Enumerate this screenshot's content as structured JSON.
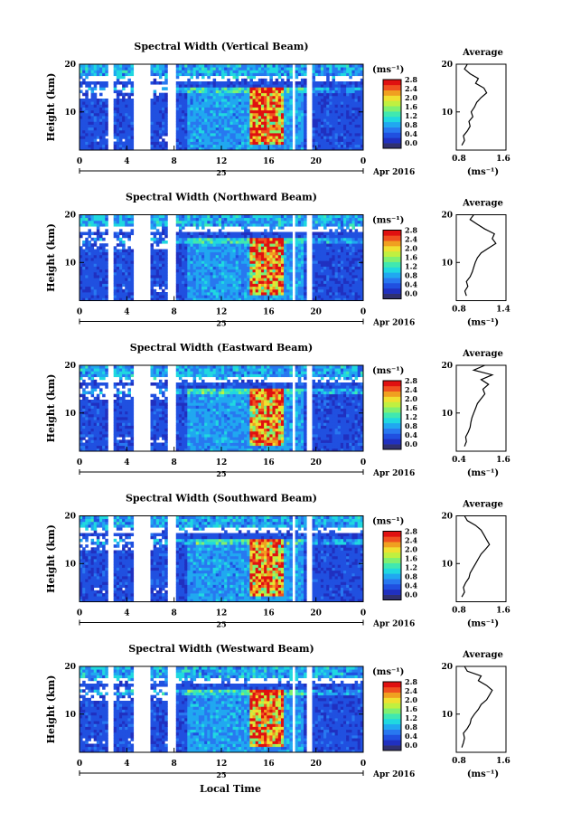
{
  "figure": {
    "xlabel_bottom": "Local Time",
    "date_label": "Apr 2016",
    "day_label": "25",
    "y_axis_label": "Height (km)",
    "unit_label": "(ms⁻¹)",
    "avg_unit_label": "(ms⁻¹)",
    "avg_title": "Average"
  },
  "colors": {
    "colormap": [
      "#303070",
      "#2030c0",
      "#2050e0",
      "#2878f0",
      "#20a8f0",
      "#20d8e0",
      "#40e8b0",
      "#80f070",
      "#c0f040",
      "#f0e030",
      "#f0a020",
      "#f05020",
      "#e01010"
    ]
  },
  "chart_data": [
    {
      "type": "heatmap",
      "title": "Spectral Width (Vertical Beam)",
      "ylabel": "Height (km)",
      "xlabel": "Local Time",
      "xlim": [
        0,
        24
      ],
      "xticks": [
        "0",
        "4",
        "8",
        "12",
        "16",
        "20",
        "0"
      ],
      "ylim": [
        2,
        20
      ],
      "yticks": [
        "10",
        "20"
      ],
      "colorbar": {
        "label": "(ms⁻¹)",
        "ticks": [
          "0.0",
          "0.4",
          "0.8",
          "1.2",
          "1.6",
          "2.0",
          "2.4",
          "2.8"
        ]
      },
      "data_gaps_hours": [
        [
          2.4,
          2.9
        ],
        [
          4.6,
          6.0
        ],
        [
          7.5,
          8.2
        ],
        [
          18.0,
          18.3
        ],
        [
          19.3,
          19.6
        ]
      ],
      "enhanced_region": {
        "x": [
          14.5,
          17.3
        ],
        "y": [
          3,
          15
        ]
      },
      "average_profile": {
        "title": "Average",
        "xlabel": "(ms⁻¹)",
        "xticks": [
          "0.8",
          "1.6"
        ],
        "xlim": [
          0.8,
          1.6
        ],
        "yticks": [
          "10",
          "20"
        ],
        "height": [
          3,
          4,
          5,
          6,
          7,
          8,
          9,
          10,
          11,
          12,
          13,
          14,
          15,
          16,
          17,
          18,
          19,
          20
        ],
        "value": [
          0.85,
          0.9,
          0.88,
          0.95,
          1.0,
          0.98,
          1.05,
          1.02,
          1.08,
          1.12,
          1.2,
          1.3,
          1.25,
          1.1,
          1.15,
          1.0,
          0.9,
          0.95
        ]
      }
    },
    {
      "type": "heatmap",
      "title": "Spectral Width (Northward Beam)",
      "ylabel": "Height (km)",
      "xlabel": "Local Time",
      "xlim": [
        0,
        24
      ],
      "xticks": [
        "0",
        "4",
        "8",
        "12",
        "16",
        "20",
        "0"
      ],
      "ylim": [
        2,
        20
      ],
      "yticks": [
        "10",
        "20"
      ],
      "colorbar": {
        "label": "(ms⁻¹)",
        "ticks": [
          "0.0",
          "0.4",
          "0.8",
          "1.2",
          "1.6",
          "2.0",
          "2.4",
          "2.8"
        ]
      },
      "data_gaps_hours": [
        [
          2.4,
          2.9
        ],
        [
          4.6,
          6.0
        ],
        [
          7.5,
          8.2
        ],
        [
          18.0,
          18.3
        ],
        [
          19.3,
          19.6
        ]
      ],
      "enhanced_region": {
        "x": [
          14.5,
          17.3
        ],
        "y": [
          3,
          15
        ]
      },
      "average_profile": {
        "title": "Average",
        "xlabel": "(ms⁻¹)",
        "xticks": [
          "0.8",
          "1.4"
        ],
        "xlim": [
          0.8,
          1.4
        ],
        "yticks": [
          "10",
          "20"
        ],
        "height": [
          3,
          4,
          5,
          6,
          7,
          8,
          9,
          10,
          11,
          12,
          13,
          14,
          15,
          16,
          17,
          18,
          19,
          20
        ],
        "value": [
          0.9,
          0.88,
          0.92,
          0.9,
          0.95,
          0.98,
          1.0,
          1.02,
          1.05,
          1.1,
          1.2,
          1.3,
          1.25,
          1.28,
          1.15,
          1.05,
          0.95,
          1.0
        ]
      }
    },
    {
      "type": "heatmap",
      "title": "Spectral Width (Eastward Beam)",
      "ylabel": "Height (km)",
      "xlabel": "Local Time",
      "xlim": [
        0,
        24
      ],
      "xticks": [
        "0",
        "4",
        "8",
        "12",
        "16",
        "20",
        "0"
      ],
      "ylim": [
        2,
        20
      ],
      "yticks": [
        "10",
        "20"
      ],
      "colorbar": {
        "label": "(ms⁻¹)",
        "ticks": [
          "0.0",
          "0.4",
          "0.8",
          "1.2",
          "1.6",
          "2.0",
          "2.4",
          "2.8"
        ]
      },
      "data_gaps_hours": [
        [
          2.4,
          2.9
        ],
        [
          4.6,
          6.0
        ],
        [
          7.5,
          8.2
        ],
        [
          18.0,
          18.3
        ],
        [
          19.3,
          19.6
        ]
      ],
      "enhanced_region": {
        "x": [
          14.5,
          17.3
        ],
        "y": [
          3,
          15
        ]
      },
      "average_profile": {
        "title": "Average",
        "xlabel": "(ms⁻¹)",
        "xticks": [
          "0.4",
          "1.6"
        ],
        "xlim": [
          0.4,
          1.6
        ],
        "yticks": [
          "10",
          "20"
        ],
        "height": [
          3,
          4,
          5,
          6,
          7,
          8,
          9,
          10,
          11,
          12,
          13,
          14,
          15,
          16,
          17,
          18,
          19,
          20
        ],
        "value": [
          0.55,
          0.6,
          0.58,
          0.65,
          0.7,
          0.72,
          0.75,
          0.8,
          0.85,
          0.9,
          1.0,
          1.1,
          1.05,
          1.2,
          1.0,
          1.3,
          0.8,
          1.1
        ]
      }
    },
    {
      "type": "heatmap",
      "title": "Spectral Width (Southward Beam)",
      "ylabel": "Height (km)",
      "xlabel": "Local Time",
      "xlim": [
        0,
        24
      ],
      "xticks": [
        "0",
        "4",
        "8",
        "12",
        "16",
        "20",
        "0"
      ],
      "ylim": [
        2,
        20
      ],
      "yticks": [
        "10",
        "20"
      ],
      "colorbar": {
        "label": "(ms⁻¹)",
        "ticks": [
          "0.0",
          "0.4",
          "0.8",
          "1.2",
          "1.6",
          "2.0",
          "2.4",
          "2.8"
        ]
      },
      "data_gaps_hours": [
        [
          2.4,
          2.9
        ],
        [
          4.6,
          6.0
        ],
        [
          7.5,
          8.2
        ],
        [
          18.0,
          18.3
        ],
        [
          19.3,
          19.6
        ]
      ],
      "enhanced_region": {
        "x": [
          14.5,
          17.3
        ],
        "y": [
          3,
          15
        ]
      },
      "average_profile": {
        "title": "Average",
        "xlabel": "(ms⁻¹)",
        "xticks": [
          "0.8",
          "1.6"
        ],
        "xlim": [
          0.8,
          1.6
        ],
        "yticks": [
          "10",
          "20"
        ],
        "height": [
          3,
          4,
          5,
          6,
          7,
          8,
          9,
          10,
          11,
          12,
          13,
          14,
          15,
          16,
          17,
          18,
          19,
          20
        ],
        "value": [
          0.85,
          0.9,
          0.88,
          0.92,
          0.98,
          1.0,
          1.05,
          1.1,
          1.15,
          1.2,
          1.28,
          1.35,
          1.3,
          1.25,
          1.2,
          1.1,
          0.95,
          0.9
        ]
      }
    },
    {
      "type": "heatmap",
      "title": "Spectral Width (Westward Beam)",
      "ylabel": "Height (km)",
      "xlabel": "Local Time",
      "xlim": [
        0,
        24
      ],
      "xticks": [
        "0",
        "4",
        "8",
        "12",
        "16",
        "20",
        "0"
      ],
      "ylim": [
        2,
        20
      ],
      "yticks": [
        "10",
        "20"
      ],
      "colorbar": {
        "label": "(ms⁻¹)",
        "ticks": [
          "0.0",
          "0.4",
          "0.8",
          "1.2",
          "1.6",
          "2.0",
          "2.4",
          "2.8"
        ]
      },
      "data_gaps_hours": [
        [
          2.4,
          2.9
        ],
        [
          4.6,
          6.0
        ],
        [
          7.5,
          8.2
        ],
        [
          18.0,
          18.3
        ],
        [
          19.3,
          19.6
        ]
      ],
      "enhanced_region": {
        "x": [
          14.5,
          17.3
        ],
        "y": [
          3,
          15
        ]
      },
      "average_profile": {
        "title": "Average",
        "xlabel": "(ms⁻¹)",
        "xticks": [
          "0.8",
          "1.6"
        ],
        "xlim": [
          0.8,
          1.6
        ],
        "yticks": [
          "10",
          "20"
        ],
        "height": [
          3,
          4,
          5,
          6,
          7,
          8,
          9,
          10,
          11,
          12,
          13,
          14,
          15,
          16,
          17,
          18,
          19,
          20
        ],
        "value": [
          0.85,
          0.88,
          0.9,
          0.88,
          0.95,
          1.0,
          1.02,
          1.08,
          1.15,
          1.2,
          1.3,
          1.35,
          1.4,
          1.3,
          1.15,
          1.2,
          0.95,
          0.9
        ]
      }
    }
  ]
}
